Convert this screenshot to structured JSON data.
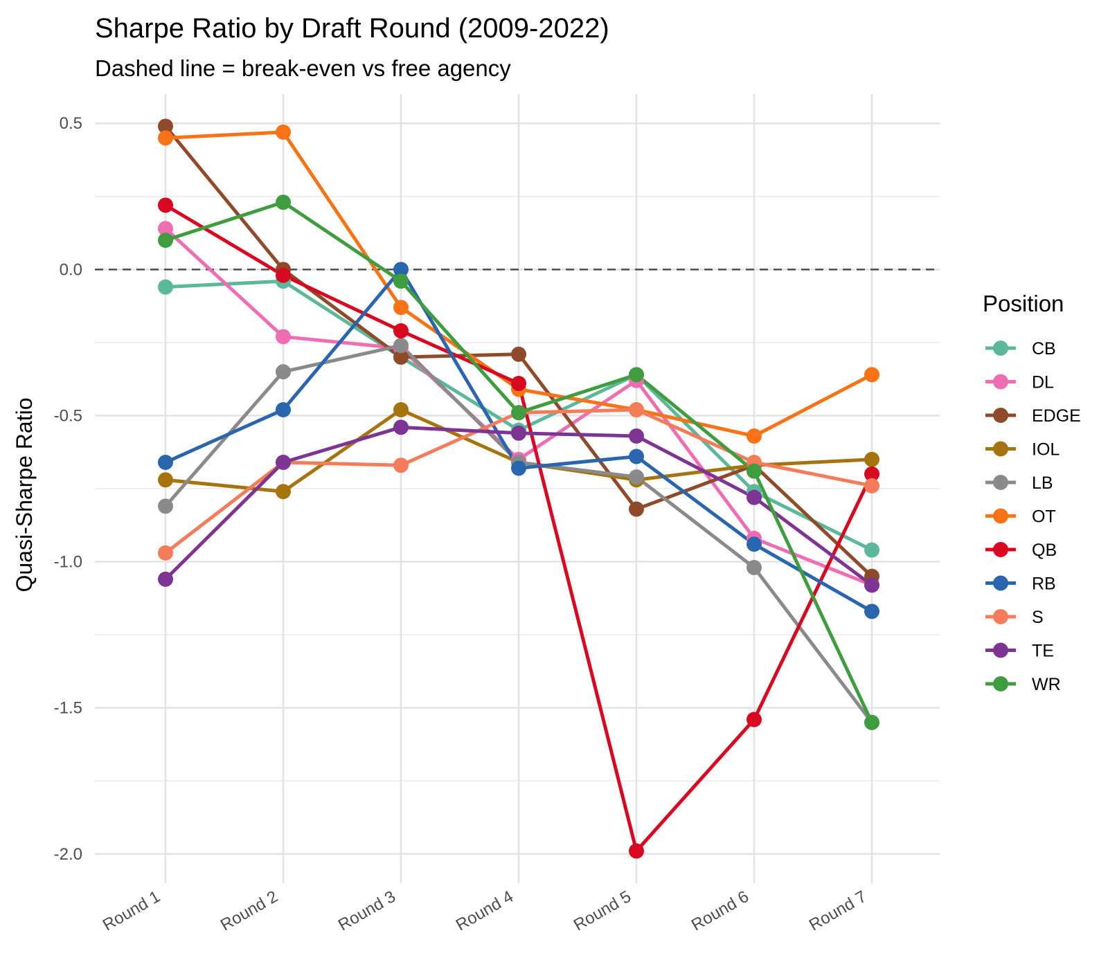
{
  "chart_data": {
    "type": "line",
    "title": "Sharpe Ratio by Draft Round (2009-2022)",
    "subtitle": "Dashed line = break-even vs free agency",
    "xlabel": "",
    "ylabel": "Quasi-Sharpe Ratio",
    "categories": [
      "Round 1",
      "Round 2",
      "Round 3",
      "Round 4",
      "Round 5",
      "Round 6",
      "Round 7"
    ],
    "ylim": [
      -2.1,
      0.6
    ],
    "yticks": [
      0.5,
      0.0,
      -0.5,
      -1.0,
      -1.5,
      -2.0
    ],
    "ytick_labels": [
      "0.5",
      "0.0",
      "-0.5",
      "-1.0",
      "-1.5",
      "-2.0"
    ],
    "reference_line": {
      "y": 0.0,
      "style": "dashed",
      "color": "#4d4d4d"
    },
    "grid": true,
    "legend": {
      "title": "Position",
      "position": "right"
    },
    "series": [
      {
        "name": "CB",
        "color": "#5BB89A",
        "values": [
          -0.06,
          -0.04,
          -0.3,
          -0.55,
          -0.36,
          -0.76,
          -0.96
        ]
      },
      {
        "name": "DL",
        "color": "#EE6DB3",
        "values": [
          0.14,
          -0.23,
          -0.27,
          -0.65,
          -0.38,
          -0.92,
          -1.08
        ]
      },
      {
        "name": "EDGE",
        "color": "#8F4A2A",
        "values": [
          0.49,
          0.0,
          -0.3,
          -0.29,
          -0.82,
          -0.67,
          -1.05
        ]
      },
      {
        "name": "IOL",
        "color": "#A5740E",
        "values": [
          -0.72,
          -0.76,
          -0.48,
          -0.66,
          -0.72,
          -0.67,
          -0.65
        ]
      },
      {
        "name": "LB",
        "color": "#8A8A8A",
        "values": [
          -0.81,
          -0.35,
          -0.26,
          -0.66,
          -0.71,
          -1.02,
          -1.55
        ]
      },
      {
        "name": "OT",
        "color": "#F97316",
        "values": [
          0.45,
          0.47,
          -0.13,
          -0.41,
          -0.48,
          -0.57,
          -0.36
        ]
      },
      {
        "name": "QB",
        "color": "#D7081F",
        "values": [
          0.22,
          -0.02,
          -0.21,
          -0.39,
          -1.99,
          -1.54,
          -0.7
        ]
      },
      {
        "name": "RB",
        "color": "#2A66AE",
        "values": [
          -0.66,
          -0.48,
          0.0,
          -0.68,
          -0.64,
          -0.94,
          -1.17
        ]
      },
      {
        "name": "S",
        "color": "#F47C5A",
        "values": [
          -0.97,
          -0.66,
          -0.67,
          -0.49,
          -0.48,
          -0.66,
          -0.74
        ]
      },
      {
        "name": "TE",
        "color": "#7D3493",
        "values": [
          -1.06,
          -0.66,
          -0.54,
          -0.56,
          -0.57,
          -0.78,
          -1.08
        ]
      },
      {
        "name": "WR",
        "color": "#3F9C3F",
        "values": [
          0.1,
          0.23,
          -0.04,
          -0.49,
          -0.36,
          -0.69,
          -1.55
        ]
      }
    ]
  }
}
